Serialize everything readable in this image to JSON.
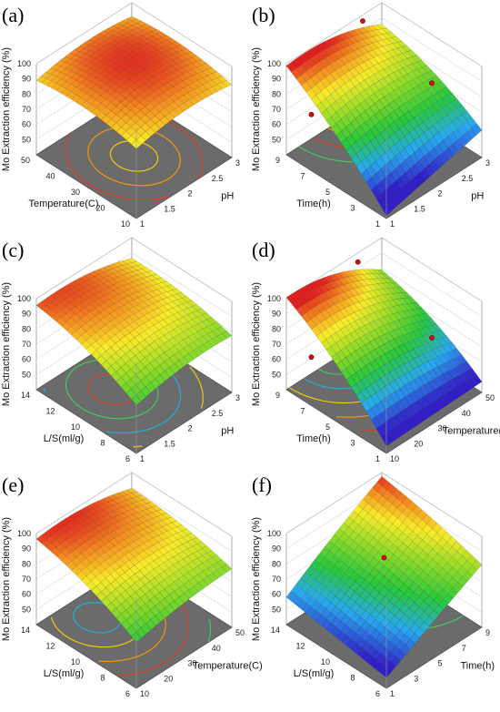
{
  "figure": {
    "background": "#ffffff",
    "floor_color": "#6b6b6b",
    "box_color": "#999999"
  },
  "chart_data": [
    {
      "panel": "(a)",
      "type": "surface",
      "x": {
        "label": "pH",
        "range": [
          1,
          3
        ],
        "ticks": [
          "1",
          "1.5",
          "2",
          "2.5",
          "3"
        ]
      },
      "y": {
        "label": "Temperature(C)",
        "range": [
          10,
          50
        ],
        "ticks": [
          "10",
          "20",
          "30",
          "40",
          "50"
        ]
      },
      "z": {
        "label": "Mo Extraction efficiency (%)",
        "range": [
          40,
          100
        ],
        "ticks": [
          "50",
          "60",
          "70",
          "80",
          "90",
          "100"
        ]
      },
      "surface": {
        "peak_x": 2.0,
        "peak_y": 30,
        "peak_z": 97,
        "corners": {
          "x0y0": 75,
          "x1y0": 77,
          "x0y1": 78,
          "x1y1": 80
        }
      },
      "contours": 4,
      "points": []
    },
    {
      "panel": "(b)",
      "type": "surface",
      "x": {
        "label": "pH",
        "range": [
          1,
          3
        ],
        "ticks": [
          "1",
          "1.5",
          "2",
          "2.5",
          "3"
        ]
      },
      "y": {
        "label": "Time(h)",
        "range": [
          1,
          9
        ],
        "ticks": [
          "1",
          "3",
          "5",
          "7",
          "9"
        ]
      },
      "z": {
        "label": "Mo Extraction efficiency (%)",
        "range": [
          40,
          100
        ],
        "ticks": [
          "50",
          "60",
          "70",
          "80",
          "90",
          "100"
        ]
      },
      "surface": {
        "peak_x": 2.2,
        "peak_y": 9,
        "peak_z": 96,
        "corners": {
          "x0y0": 42,
          "x1y0": 58,
          "x0y1": 85,
          "x1y1": 68
        }
      },
      "contours": 3,
      "points": [
        {
          "x": 2.6,
          "y": 9,
          "z": 96
        },
        {
          "x": 1,
          "y": 7,
          "z": 77
        },
        {
          "x": 3,
          "y": 5,
          "z": 68
        }
      ]
    },
    {
      "panel": "(c)",
      "type": "surface",
      "x": {
        "label": "pH",
        "range": [
          1,
          3
        ],
        "ticks": [
          "1",
          "1.5",
          "2",
          "2.5",
          "3"
        ]
      },
      "y": {
        "label": "L/S(ml/g)",
        "range": [
          6,
          14
        ],
        "ticks": [
          "6",
          "8",
          "10",
          "12",
          "14"
        ]
      },
      "z": {
        "label": "Mo Extraction efficiency (%)",
        "range": [
          40,
          100
        ],
        "ticks": [
          "50",
          "60",
          "70",
          "80",
          "90",
          "100"
        ]
      },
      "surface": {
        "peak_x": 1.8,
        "peak_y": 11,
        "peak_z": 93,
        "corners": {
          "x0y0": 62,
          "x1y0": 70,
          "x0y1": 82,
          "x1y1": 76
        }
      },
      "contours": 5,
      "points": []
    },
    {
      "panel": "(d)",
      "type": "surface",
      "x": {
        "label": "Temperature(C)",
        "range": [
          10,
          50
        ],
        "ticks": [
          "10",
          "20",
          "30",
          "40",
          "50"
        ]
      },
      "y": {
        "label": "Time(h)",
        "range": [
          1,
          9
        ],
        "ticks": [
          "1",
          "3",
          "5",
          "7",
          "9"
        ]
      },
      "z": {
        "label": "Mo Extraction efficiency (%)",
        "range": [
          40,
          100
        ],
        "ticks": [
          "50",
          "60",
          "70",
          "80",
          "90",
          "100"
        ]
      },
      "surface": {
        "peak_x": 30,
        "peak_y": 9,
        "peak_z": 96,
        "corners": {
          "x0y0": 45,
          "x1y0": 47,
          "x0y1": 82,
          "x1y1": 60
        }
      },
      "contours": 5,
      "points": [
        {
          "x": 40,
          "y": 9,
          "z": 94
        },
        {
          "x": 10,
          "y": 7,
          "z": 72
        },
        {
          "x": 50,
          "y": 5,
          "z": 55
        }
      ]
    },
    {
      "panel": "(e)",
      "type": "surface",
      "x": {
        "label": "Temperature(C)",
        "range": [
          10,
          50
        ],
        "ticks": [
          "10",
          "20",
          "30",
          "40",
          "50"
        ]
      },
      "y": {
        "label": "L/S(ml/g)",
        "range": [
          6,
          14
        ],
        "ticks": [
          "6",
          "8",
          "10",
          "12",
          "14"
        ]
      },
      "z": {
        "label": "Mo Extraction efficiency (%)",
        "range": [
          40,
          100
        ],
        "ticks": [
          "50",
          "60",
          "70",
          "80",
          "90",
          "100"
        ]
      },
      "surface": {
        "peak_x": 25,
        "peak_y": 12,
        "peak_z": 95,
        "corners": {
          "x0y0": 64,
          "x1y0": 74,
          "x0y1": 83,
          "x1y1": 80
        }
      },
      "contours": 5,
      "points": []
    },
    {
      "panel": "(f)",
      "type": "surface",
      "x": {
        "label": "Time(h)",
        "range": [
          1,
          9
        ],
        "ticks": [
          "1",
          "3",
          "5",
          "7",
          "9"
        ]
      },
      "y": {
        "label": "L/S(ml/g)",
        "range": [
          6,
          14
        ],
        "ticks": [
          "6",
          "8",
          "10",
          "12",
          "14"
        ]
      },
      "z": {
        "label": "Mo Extraction efficiency (%)",
        "range": [
          40,
          100
        ],
        "ticks": [
          "50",
          "60",
          "70",
          "80",
          "90",
          "100"
        ]
      },
      "surface": {
        "peak_x": 9,
        "peak_y": 13,
        "peak_z": 96,
        "corners": {
          "x0y0": 47,
          "x1y0": 80,
          "x0y1": 58,
          "x1y1": 92
        }
      },
      "contours": 4,
      "points": [
        {
          "x": 5,
          "y": 10,
          "z": 85
        }
      ]
    }
  ]
}
